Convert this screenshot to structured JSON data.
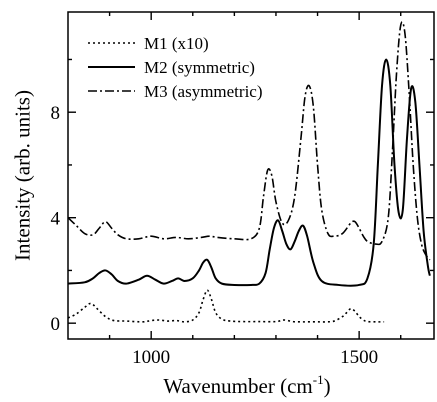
{
  "chart_data": {
    "type": "line",
    "xlabel": "Wavenumber (cm",
    "xlabel_sup": "-1",
    "xlabel_close": ")",
    "ylabel": "Intensity (arb. units)",
    "xlim": [
      800,
      1680
    ],
    "ylim": [
      -0.6,
      11.8
    ],
    "x_ticks": [
      1000,
      1500
    ],
    "x_tick_labels": [
      "1000",
      "1500"
    ],
    "y_ticks": [
      0,
      4,
      8
    ],
    "y_tick_labels": [
      "0",
      "4",
      "8"
    ],
    "legend_position": "top-left",
    "series": [
      {
        "name": "M1 (x10)",
        "style": "dotted",
        "color": "#000000",
        "x": [
          800,
          820,
          840,
          855,
          870,
          890,
          910,
          940,
          980,
          1000,
          1020,
          1040,
          1060,
          1080,
          1100,
          1115,
          1125,
          1135,
          1145,
          1155,
          1170,
          1190,
          1220,
          1260,
          1300,
          1320,
          1340,
          1360,
          1380,
          1400,
          1420,
          1440,
          1460,
          1470,
          1480,
          1490,
          1500,
          1510,
          1520,
          1540,
          1560
        ],
        "y": [
          0.2,
          0.35,
          0.6,
          0.75,
          0.55,
          0.25,
          0.1,
          0.08,
          0.05,
          0.1,
          0.12,
          0.08,
          0.1,
          0.05,
          0.12,
          0.4,
          0.9,
          1.25,
          0.9,
          0.4,
          0.15,
          0.08,
          0.06,
          0.06,
          0.06,
          0.12,
          0.06,
          0.05,
          0.05,
          0.05,
          0.05,
          0.08,
          0.25,
          0.4,
          0.55,
          0.45,
          0.25,
          0.12,
          0.06,
          0.05,
          0.05
        ]
      },
      {
        "name": "M2 (symmetric)",
        "style": "solid",
        "color": "#000000",
        "x": [
          800,
          840,
          860,
          875,
          890,
          905,
          920,
          940,
          970,
          990,
          1010,
          1030,
          1050,
          1065,
          1080,
          1100,
          1115,
          1125,
          1135,
          1145,
          1155,
          1170,
          1200,
          1240,
          1260,
          1275,
          1285,
          1295,
          1305,
          1315,
          1325,
          1335,
          1345,
          1355,
          1365,
          1375,
          1390,
          1410,
          1450,
          1500,
          1520,
          1535,
          1545,
          1555,
          1565,
          1575,
          1585,
          1595,
          1605,
          1615,
          1625,
          1635,
          1645,
          1655,
          1665,
          1670
        ],
        "y": [
          1.5,
          1.55,
          1.7,
          1.9,
          2.0,
          1.85,
          1.6,
          1.5,
          1.65,
          1.8,
          1.65,
          1.5,
          1.6,
          1.7,
          1.6,
          1.7,
          2.0,
          2.3,
          2.4,
          2.1,
          1.7,
          1.5,
          1.45,
          1.45,
          1.5,
          1.9,
          2.8,
          3.6,
          3.9,
          3.5,
          3.0,
          2.8,
          3.1,
          3.5,
          3.7,
          3.3,
          2.3,
          1.6,
          1.45,
          1.45,
          1.7,
          3.0,
          6.0,
          9.0,
          10.0,
          9.0,
          6.0,
          4.2,
          4.3,
          7.0,
          8.9,
          8.4,
          6.0,
          3.5,
          2.2,
          1.8
        ]
      },
      {
        "name": "M3 (asymmetric)",
        "style": "dashdot",
        "color": "#000000",
        "x": [
          800,
          820,
          840,
          860,
          875,
          890,
          905,
          920,
          940,
          970,
          1000,
          1030,
          1060,
          1090,
          1120,
          1140,
          1160,
          1200,
          1240,
          1260,
          1270,
          1280,
          1290,
          1300,
          1315,
          1330,
          1345,
          1360,
          1370,
          1380,
          1390,
          1400,
          1410,
          1425,
          1440,
          1460,
          1480,
          1490,
          1500,
          1510,
          1520,
          1540,
          1555,
          1570,
          1580,
          1590,
          1600,
          1610,
          1620,
          1630,
          1640,
          1650,
          1660,
          1670
        ],
        "y": [
          4.0,
          3.7,
          3.4,
          3.35,
          3.6,
          3.85,
          3.6,
          3.35,
          3.2,
          3.2,
          3.3,
          3.2,
          3.25,
          3.2,
          3.25,
          3.3,
          3.25,
          3.2,
          3.2,
          3.6,
          4.8,
          5.8,
          5.6,
          4.6,
          3.8,
          3.9,
          4.8,
          7.0,
          8.6,
          9.0,
          8.2,
          6.0,
          4.3,
          3.4,
          3.3,
          3.4,
          3.8,
          3.85,
          3.6,
          3.3,
          3.1,
          3.0,
          3.1,
          4.0,
          6.5,
          9.5,
          11.3,
          11.0,
          8.8,
          6.0,
          4.0,
          3.0,
          2.6,
          2.4
        ]
      }
    ]
  }
}
